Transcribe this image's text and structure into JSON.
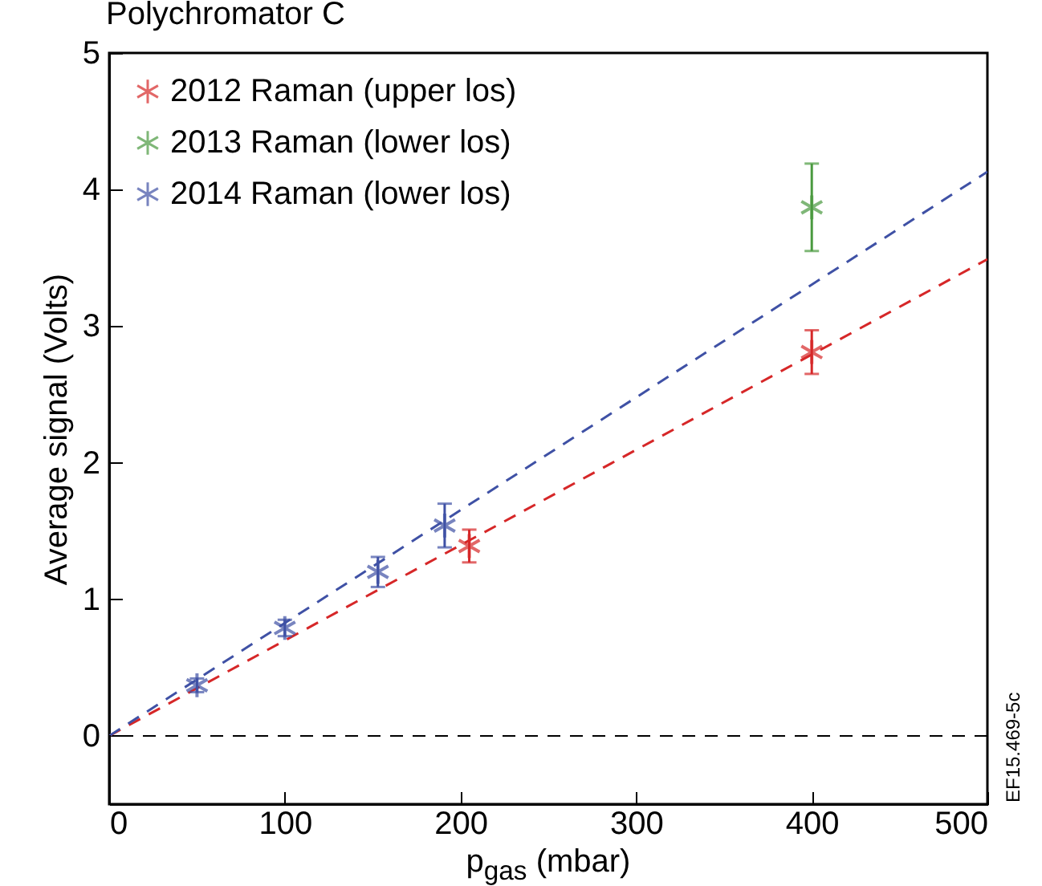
{
  "chart_data": {
    "type": "scatter",
    "title": "Polychromator C",
    "xlabel": "p$_{gas}$ (mbar)",
    "ylabel": "Average signal (Volts)",
    "xlim": [
      0,
      500
    ],
    "ylim": [
      -0.5,
      5
    ],
    "xticks": [
      0,
      100,
      200,
      300,
      400,
      500
    ],
    "yticks": [
      0,
      1,
      2,
      3,
      4,
      5
    ],
    "grid": false,
    "legend": "top left",
    "marker": "cross",
    "series": [
      {
        "name": "2012 Raman (upper los)",
        "color": "#d62728",
        "x": [
          205,
          400
        ],
        "values": [
          1.39,
          2.81
        ],
        "errors": [
          0.12,
          0.16
        ]
      },
      {
        "name": "2013 Raman (lower los)",
        "color": "#4a9a3f",
        "x": [
          400
        ],
        "values": [
          3.87
        ],
        "errors": [
          0.32
        ]
      },
      {
        "name": "2014 Raman (lower los)",
        "color": "#3f51a5",
        "x": [
          50,
          100,
          153,
          191
        ],
        "values": [
          0.37,
          0.79,
          1.2,
          1.54
        ],
        "errors": [
          0.05,
          0.06,
          0.11,
          0.16
        ]
      },
      {
        "type": "line",
        "marker": "none",
        "line_style": "dashed",
        "color": "#d62728",
        "x": [
          0,
          500
        ],
        "values": [
          0,
          3.49
        ]
      },
      {
        "type": "line",
        "marker": "none",
        "line_style": "dashed",
        "color": "#3f51a5",
        "x": [
          0,
          500
        ],
        "values": [
          0,
          4.13
        ]
      }
    ],
    "ref_lines": [
      {
        "axis": "y",
        "value": 0,
        "color": "#000000",
        "line_style": "dashed"
      }
    ],
    "annotations": [
      "EF15.469-5c"
    ]
  }
}
